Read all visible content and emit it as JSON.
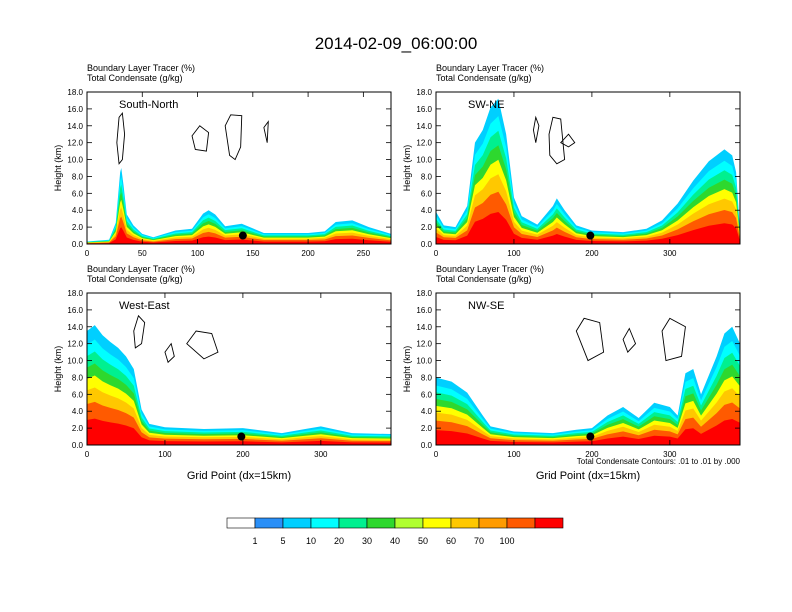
{
  "title": "2014-02-09_06:00:00",
  "footnote": "Total Condensate Contours: .01 to .01 by .000",
  "colorbar": {
    "labels": [
      "1",
      "5",
      "10",
      "20",
      "30",
      "40",
      "50",
      "60",
      "70",
      "100"
    ],
    "colors": [
      "#ffffff",
      "#2a8ff7",
      "#00cfff",
      "#00ffff",
      "#00f090",
      "#2ed82e",
      "#b0ff30",
      "#ffff00",
      "#ffc800",
      "#ff9b00",
      "#ff5a00",
      "#ff0000"
    ]
  },
  "chart_data": [
    {
      "type": "heatmap",
      "name": "South-North",
      "title_line1": "Boundary Layer Tracer   (%)",
      "title_line2": "Total Condensate   (g/kg)",
      "ylabel": "Height (km)",
      "xlabel": "",
      "xlim": [
        0,
        275
      ],
      "ylim": [
        0,
        18
      ],
      "xticks": [
        "0",
        "50",
        "100",
        "150",
        "200",
        "250"
      ],
      "xtick_values": [
        0,
        50,
        100,
        150,
        200,
        250
      ],
      "yticks": [
        "0.0",
        "2.0",
        "4.0",
        "6.0",
        "8.0",
        "10.0",
        "12.0",
        "14.0",
        "16.0",
        "18.0"
      ],
      "marker": [
        141,
        1.0
      ],
      "tracer_profile": [
        [
          0,
          0.3
        ],
        [
          20,
          0.5
        ],
        [
          26,
          2.5
        ],
        [
          28,
          5.5
        ],
        [
          30,
          8.5
        ],
        [
          31,
          9.0
        ],
        [
          33,
          7
        ],
        [
          36,
          3.5
        ],
        [
          42,
          2.2
        ],
        [
          50,
          1.2
        ],
        [
          60,
          0.8
        ],
        [
          80,
          1.6
        ],
        [
          95,
          1.8
        ],
        [
          105,
          3.6
        ],
        [
          110,
          4.0
        ],
        [
          116,
          3.5
        ],
        [
          125,
          2.1
        ],
        [
          140,
          2.4
        ],
        [
          160,
          1.3
        ],
        [
          200,
          1.3
        ],
        [
          215,
          1.5
        ],
        [
          225,
          2.6
        ],
        [
          240,
          2.8
        ],
        [
          255,
          2.0
        ],
        [
          275,
          1.2
        ]
      ],
      "cloud_contours": [
        [
          [
            27,
            12
          ],
          [
            29,
            15
          ],
          [
            32,
            15.5
          ],
          [
            34,
            13
          ],
          [
            32,
            10
          ],
          [
            29,
            9.5
          ],
          [
            27,
            12
          ]
        ],
        [
          [
            95,
            12.8
          ],
          [
            102,
            14
          ],
          [
            110,
            13.2
          ],
          [
            108,
            11
          ],
          [
            98,
            11.2
          ],
          [
            95,
            12.8
          ]
        ],
        [
          [
            125,
            14
          ],
          [
            130,
            15.3
          ],
          [
            140,
            15.2
          ],
          [
            139,
            11.5
          ],
          [
            134,
            10
          ],
          [
            129,
            10.5
          ],
          [
            125,
            14
          ]
        ],
        [
          [
            160,
            13.8
          ],
          [
            164,
            14.5
          ],
          [
            163,
            12
          ],
          [
            160,
            13.8
          ]
        ]
      ]
    },
    {
      "type": "heatmap",
      "name": "SW-NE",
      "title_line1": "Boundary Layer Tracer   (%)",
      "title_line2": "Total Condensate   (g/kg)",
      "ylabel": "Height (km)",
      "xlabel": "",
      "xlim": [
        0,
        390
      ],
      "ylim": [
        0,
        18
      ],
      "xticks": [
        "0",
        "100",
        "200",
        "300"
      ],
      "xtick_values": [
        0,
        100,
        200,
        300
      ],
      "yticks": [
        "0.0",
        "2.0",
        "4.0",
        "6.0",
        "8.0",
        "10.0",
        "12.0",
        "14.0",
        "16.0",
        "18.0"
      ],
      "marker": [
        198,
        1.0
      ],
      "tracer_profile": [
        [
          0,
          3.8
        ],
        [
          10,
          2.2
        ],
        [
          25,
          2.0
        ],
        [
          40,
          4.5
        ],
        [
          50,
          12.0
        ],
        [
          60,
          13.5
        ],
        [
          70,
          16.2
        ],
        [
          80,
          17.2
        ],
        [
          90,
          13.0
        ],
        [
          100,
          5.5
        ],
        [
          110,
          3.3
        ],
        [
          130,
          2.3
        ],
        [
          150,
          4.5
        ],
        [
          155,
          5.4
        ],
        [
          165,
          4.0
        ],
        [
          180,
          2.2
        ],
        [
          200,
          1.6
        ],
        [
          240,
          1.4
        ],
        [
          270,
          1.8
        ],
        [
          290,
          2.8
        ],
        [
          310,
          4.8
        ],
        [
          330,
          7.5
        ],
        [
          350,
          9.8
        ],
        [
          370,
          11.2
        ],
        [
          380,
          10.5
        ],
        [
          385,
          8.5
        ],
        [
          390,
          1.5
        ]
      ],
      "cloud_contours": [
        [
          [
            125,
            13.5
          ],
          [
            128,
            15
          ],
          [
            132,
            14
          ],
          [
            128,
            12
          ],
          [
            125,
            13.5
          ]
        ],
        [
          [
            145,
            13
          ],
          [
            150,
            15
          ],
          [
            160,
            14.8
          ],
          [
            165,
            10
          ],
          [
            155,
            9.5
          ],
          [
            146,
            10.5
          ],
          [
            145,
            13
          ]
        ],
        [
          [
            160,
            12
          ],
          [
            170,
            13
          ],
          [
            178,
            12
          ],
          [
            170,
            11.5
          ],
          [
            160,
            12
          ]
        ]
      ]
    },
    {
      "type": "heatmap",
      "name": "West-East",
      "title_line1": "Boundary Layer Tracer   (%)",
      "title_line2": "Total Condensate   (g/kg)",
      "ylabel": "Height (km)",
      "xlabel": "Grid Point (dx=15km)",
      "xlim": [
        0,
        390
      ],
      "ylim": [
        0,
        18
      ],
      "xticks": [
        "0",
        "100",
        "200",
        "300"
      ],
      "xtick_values": [
        0,
        100,
        200,
        300
      ],
      "yticks": [
        "0.0",
        "2.0",
        "4.0",
        "6.0",
        "8.0",
        "10.0",
        "12.0",
        "14.0",
        "16.0",
        "18.0"
      ],
      "marker": [
        198,
        1.0
      ],
      "tracer_profile": [
        [
          0,
          13.5
        ],
        [
          10,
          14.2
        ],
        [
          20,
          13.0
        ],
        [
          30,
          12.2
        ],
        [
          40,
          11.5
        ],
        [
          50,
          10.5
        ],
        [
          60,
          9.0
        ],
        [
          70,
          4.2
        ],
        [
          80,
          2.5
        ],
        [
          100,
          2.1
        ],
        [
          150,
          1.9
        ],
        [
          200,
          2.0
        ],
        [
          250,
          1.4
        ],
        [
          280,
          1.9
        ],
        [
          300,
          2.2
        ],
        [
          340,
          1.4
        ],
        [
          390,
          1.3
        ]
      ],
      "cloud_contours": [
        [
          [
            60,
            13.5
          ],
          [
            66,
            15.3
          ],
          [
            74,
            14.5
          ],
          [
            70,
            12
          ],
          [
            62,
            11.5
          ],
          [
            60,
            13.5
          ]
        ],
        [
          [
            128,
            12
          ],
          [
            140,
            13.5
          ],
          [
            160,
            13.2
          ],
          [
            168,
            11
          ],
          [
            150,
            10.2
          ],
          [
            128,
            12
          ]
        ],
        [
          [
            100,
            11
          ],
          [
            108,
            12
          ],
          [
            112,
            10.5
          ],
          [
            104,
            9.8
          ],
          [
            100,
            11
          ]
        ]
      ]
    },
    {
      "type": "heatmap",
      "name": "NW-SE",
      "title_line1": "Boundary Layer Tracer   (%)",
      "title_line2": "Total Condensate   (g/kg)",
      "ylabel": "Height (km)",
      "xlabel": "Grid Point (dx=15km)",
      "xlim": [
        0,
        390
      ],
      "ylim": [
        0,
        18
      ],
      "xticks": [
        "0",
        "100",
        "200",
        "300"
      ],
      "xtick_values": [
        0,
        100,
        200,
        300
      ],
      "yticks": [
        "0.0",
        "2.0",
        "4.0",
        "6.0",
        "8.0",
        "10.0",
        "12.0",
        "14.0",
        "16.0",
        "18.0"
      ],
      "marker": [
        198,
        1.0
      ],
      "tracer_profile": [
        [
          0,
          8.0
        ],
        [
          20,
          7.5
        ],
        [
          40,
          6.2
        ],
        [
          60,
          3.5
        ],
        [
          70,
          2.2
        ],
        [
          100,
          1.6
        ],
        [
          150,
          1.4
        ],
        [
          180,
          1.8
        ],
        [
          200,
          2.0
        ],
        [
          220,
          3.5
        ],
        [
          240,
          4.5
        ],
        [
          260,
          3.2
        ],
        [
          280,
          5.0
        ],
        [
          300,
          4.5
        ],
        [
          310,
          3.5
        ],
        [
          320,
          8.5
        ],
        [
          330,
          9.0
        ],
        [
          340,
          6.0
        ],
        [
          360,
          10.5
        ],
        [
          370,
          13.2
        ],
        [
          380,
          14.0
        ],
        [
          390,
          12.0
        ]
      ],
      "cloud_contours": [
        [
          [
            180,
            13.5
          ],
          [
            190,
            15
          ],
          [
            210,
            14.5
          ],
          [
            215,
            11
          ],
          [
            195,
            10
          ],
          [
            180,
            13.5
          ]
        ],
        [
          [
            290,
            13.5
          ],
          [
            300,
            15
          ],
          [
            320,
            14
          ],
          [
            315,
            10.5
          ],
          [
            295,
            10
          ],
          [
            290,
            13.5
          ]
        ],
        [
          [
            240,
            12.5
          ],
          [
            248,
            13.8
          ],
          [
            256,
            12
          ],
          [
            246,
            11
          ],
          [
            240,
            12.5
          ]
        ]
      ]
    }
  ]
}
